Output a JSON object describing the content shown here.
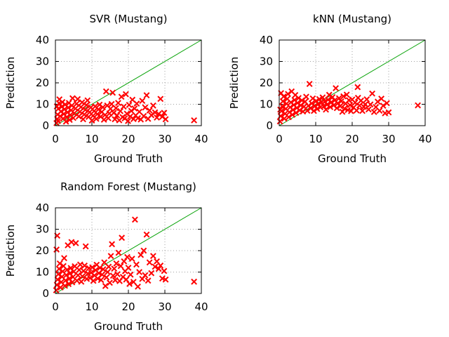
{
  "chart_data": [
    {
      "type": "scatter",
      "title": "SVR (Mustang)",
      "xlabel": "Ground Truth",
      "ylabel": "Prediction",
      "xlim": [
        0,
        40
      ],
      "ylim": [
        0,
        40
      ],
      "xticks": [
        0,
        10,
        20,
        30,
        40
      ],
      "yticks": [
        0,
        10,
        20,
        30,
        40
      ],
      "grid": true,
      "reference_line": {
        "from": [
          0,
          0
        ],
        "to": [
          40,
          40
        ],
        "color": "#00a000"
      },
      "marker_color": "#ff0000",
      "points": [
        [
          0.3,
          1.2
        ],
        [
          0.5,
          3.1
        ],
        [
          0.6,
          5.2
        ],
        [
          0.8,
          7.9
        ],
        [
          1.0,
          10.5
        ],
        [
          1.1,
          12.3
        ],
        [
          0.4,
          9.0
        ],
        [
          0.7,
          2.2
        ],
        [
          1.3,
          4.4
        ],
        [
          1.5,
          6.6
        ],
        [
          1.7,
          8.8
        ],
        [
          1.9,
          11.0
        ],
        [
          2.1,
          3.3
        ],
        [
          2.3,
          5.5
        ],
        [
          2.5,
          7.7
        ],
        [
          2.7,
          9.9
        ],
        [
          2.9,
          1.9
        ],
        [
          3.1,
          4.0
        ],
        [
          3.3,
          6.2
        ],
        [
          3.5,
          8.4
        ],
        [
          3.7,
          10.6
        ],
        [
          3.9,
          2.7
        ],
        [
          4.1,
          5.0
        ],
        [
          4.3,
          7.2
        ],
        [
          4.5,
          9.4
        ],
        [
          4.7,
          12.8
        ],
        [
          4.9,
          3.6
        ],
        [
          5.2,
          5.8
        ],
        [
          5.5,
          8.0
        ],
        [
          5.8,
          10.2
        ],
        [
          6.1,
          12.4
        ],
        [
          6.4,
          4.3
        ],
        [
          6.7,
          6.5
        ],
        [
          7.0,
          8.7
        ],
        [
          7.3,
          10.9
        ],
        [
          7.6,
          3.0
        ],
        [
          7.9,
          5.2
        ],
        [
          8.2,
          7.4
        ],
        [
          8.5,
          9.6
        ],
        [
          8.8,
          11.8
        ],
        [
          9.1,
          4.1
        ],
        [
          9.4,
          6.3
        ],
        [
          9.7,
          8.5
        ],
        [
          10.0,
          2.4
        ],
        [
          10.3,
          4.6
        ],
        [
          10.6,
          6.8
        ],
        [
          10.9,
          9.0
        ],
        [
          11.2,
          3.2
        ],
        [
          11.5,
          5.4
        ],
        [
          11.8,
          7.6
        ],
        [
          12.1,
          9.8
        ],
        [
          12.4,
          4.2
        ],
        [
          12.7,
          6.4
        ],
        [
          13.0,
          8.6
        ],
        [
          13.3,
          2.8
        ],
        [
          13.6,
          5.0
        ],
        [
          13.9,
          16.0
        ],
        [
          14.2,
          9.4
        ],
        [
          14.5,
          3.5
        ],
        [
          14.8,
          5.7
        ],
        [
          15.1,
          7.9
        ],
        [
          15.4,
          10.1
        ],
        [
          15.7,
          15.4
        ],
        [
          16.0,
          6.0
        ],
        [
          16.3,
          3.0
        ],
        [
          16.6,
          8.2
        ],
        [
          16.9,
          4.8
        ],
        [
          17.2,
          10.6
        ],
        [
          17.5,
          2.5
        ],
        [
          17.8,
          6.8
        ],
        [
          18.1,
          13.5
        ],
        [
          18.4,
          4.0
        ],
        [
          18.7,
          8.9
        ],
        [
          19.0,
          3.4
        ],
        [
          19.3,
          14.7
        ],
        [
          19.6,
          5.6
        ],
        [
          19.9,
          2.2
        ],
        [
          20.2,
          9.7
        ],
        [
          20.5,
          4.3
        ],
        [
          20.8,
          6.9
        ],
        [
          21.1,
          12.1
        ],
        [
          21.4,
          3.1
        ],
        [
          21.7,
          8.0
        ],
        [
          22.0,
          4.8
        ],
        [
          22.3,
          10.3
        ],
        [
          22.6,
          3.5
        ],
        [
          23.0,
          6.5
        ],
        [
          23.4,
          2.9
        ],
        [
          23.8,
          11.6
        ],
        [
          24.2,
          4.5
        ],
        [
          24.6,
          8.5
        ],
        [
          25.0,
          14.2
        ],
        [
          25.4,
          3.2
        ],
        [
          25.8,
          7.1
        ],
        [
          26.3,
          4.9
        ],
        [
          26.8,
          9.4
        ],
        [
          27.3,
          6.2
        ],
        [
          27.8,
          3.8
        ],
        [
          28.3,
          5.5
        ],
        [
          28.8,
          12.5
        ],
        [
          29.3,
          4.2
        ],
        [
          29.8,
          6.0
        ],
        [
          30.2,
          3.0
        ],
        [
          38.0,
          2.5
        ]
      ]
    },
    {
      "type": "scatter",
      "title": "kNN (Mustang)",
      "xlabel": "Ground Truth",
      "ylabel": "Prediction",
      "xlim": [
        0,
        40
      ],
      "ylim": [
        0,
        40
      ],
      "xticks": [
        0,
        10,
        20,
        30,
        40
      ],
      "yticks": [
        0,
        10,
        20,
        30,
        40
      ],
      "grid": true,
      "reference_line": {
        "from": [
          0,
          0
        ],
        "to": [
          40,
          40
        ],
        "color": "#00a000"
      },
      "marker_color": "#ff0000",
      "points": [
        [
          0.2,
          2.0
        ],
        [
          0.4,
          4.5
        ],
        [
          0.6,
          6.8
        ],
        [
          0.8,
          9.1
        ],
        [
          1.0,
          11.4
        ],
        [
          1.2,
          13.6
        ],
        [
          0.3,
          7.5
        ],
        [
          0.5,
          15.2
        ],
        [
          1.4,
          3.3
        ],
        [
          1.6,
          5.6
        ],
        [
          1.8,
          7.9
        ],
        [
          2.0,
          10.2
        ],
        [
          2.2,
          12.5
        ],
        [
          2.4,
          14.8
        ],
        [
          2.6,
          4.0
        ],
        [
          2.8,
          6.3
        ],
        [
          3.0,
          8.6
        ],
        [
          3.2,
          10.9
        ],
        [
          3.4,
          16.0
        ],
        [
          3.6,
          5.1
        ],
        [
          3.8,
          7.4
        ],
        [
          4.0,
          9.7
        ],
        [
          4.2,
          12.0
        ],
        [
          4.4,
          14.3
        ],
        [
          4.6,
          6.0
        ],
        [
          4.8,
          8.3
        ],
        [
          5.0,
          10.6
        ],
        [
          5.3,
          12.9
        ],
        [
          5.6,
          7.2
        ],
        [
          5.9,
          9.5
        ],
        [
          6.2,
          11.8
        ],
        [
          6.5,
          6.6
        ],
        [
          6.8,
          8.9
        ],
        [
          7.1,
          11.2
        ],
        [
          7.4,
          13.5
        ],
        [
          7.7,
          7.0
        ],
        [
          8.0,
          9.3
        ],
        [
          8.3,
          19.5
        ],
        [
          8.6,
          8.1
        ],
        [
          8.9,
          10.4
        ],
        [
          9.2,
          12.7
        ],
        [
          9.5,
          6.9
        ],
        [
          9.8,
          9.2
        ],
        [
          10.1,
          11.5
        ],
        [
          10.4,
          7.8
        ],
        [
          10.7,
          10.1
        ],
        [
          11.0,
          12.4
        ],
        [
          11.3,
          8.6
        ],
        [
          11.6,
          10.9
        ],
        [
          11.9,
          13.2
        ],
        [
          12.2,
          9.0
        ],
        [
          12.5,
          11.3
        ],
        [
          12.8,
          7.5
        ],
        [
          13.1,
          9.8
        ],
        [
          13.4,
          12.1
        ],
        [
          13.7,
          14.4
        ],
        [
          14.0,
          8.7
        ],
        [
          14.3,
          11.0
        ],
        [
          14.6,
          13.3
        ],
        [
          14.9,
          9.5
        ],
        [
          15.2,
          11.8
        ],
        [
          15.5,
          17.5
        ],
        [
          15.8,
          8.2
        ],
        [
          16.1,
          10.5
        ],
        [
          16.4,
          12.8
        ],
        [
          16.7,
          9.1
        ],
        [
          17.0,
          11.4
        ],
        [
          17.3,
          6.5
        ],
        [
          17.6,
          13.7
        ],
        [
          17.9,
          8.0
        ],
        [
          18.2,
          10.3
        ],
        [
          18.5,
          14.5
        ],
        [
          18.8,
          7.3
        ],
        [
          19.1,
          11.9
        ],
        [
          19.4,
          9.6
        ],
        [
          19.7,
          6.8
        ],
        [
          20.0,
          12.2
        ],
        [
          20.4,
          8.5
        ],
        [
          20.8,
          10.8
        ],
        [
          21.2,
          7.1
        ],
        [
          21.6,
          13.0
        ],
        [
          22.0,
          9.4
        ],
        [
          22.4,
          11.7
        ],
        [
          22.8,
          6.9
        ],
        [
          23.2,
          8.8
        ],
        [
          23.6,
          10.0
        ],
        [
          24.0,
          12.3
        ],
        [
          24.5,
          7.6
        ],
        [
          25.0,
          9.9
        ],
        [
          25.5,
          15.0
        ],
        [
          26.0,
          6.4
        ],
        [
          26.5,
          8.7
        ],
        [
          27.0,
          11.2
        ],
        [
          27.5,
          7.0
        ],
        [
          28.0,
          12.6
        ],
        [
          28.5,
          9.3
        ],
        [
          29.0,
          5.8
        ],
        [
          29.5,
          10.5
        ],
        [
          30.0,
          6.2
        ],
        [
          38.0,
          9.5
        ],
        [
          21.5,
          18.0
        ]
      ]
    },
    {
      "type": "scatter",
      "title": "Random Forest (Mustang)",
      "xlabel": "Ground Truth",
      "ylabel": "Prediction",
      "xlim": [
        0,
        40
      ],
      "ylim": [
        0,
        40
      ],
      "xticks": [
        0,
        10,
        20,
        30,
        40
      ],
      "yticks": [
        0,
        10,
        20,
        30,
        40
      ],
      "grid": true,
      "reference_line": {
        "from": [
          0,
          0
        ],
        "to": [
          40,
          40
        ],
        "color": "#00a000"
      },
      "marker_color": "#ff0000",
      "points": [
        [
          0.2,
          1.5
        ],
        [
          0.4,
          4.0
        ],
        [
          0.6,
          6.5
        ],
        [
          0.8,
          9.0
        ],
        [
          1.0,
          11.5
        ],
        [
          1.2,
          14.0
        ],
        [
          0.5,
          27.0
        ],
        [
          0.3,
          20.5
        ],
        [
          1.4,
          2.8
        ],
        [
          1.6,
          5.3
        ],
        [
          1.8,
          7.8
        ],
        [
          2.0,
          10.3
        ],
        [
          2.2,
          12.8
        ],
        [
          2.4,
          16.5
        ],
        [
          2.6,
          3.6
        ],
        [
          2.8,
          6.1
        ],
        [
          3.0,
          8.6
        ],
        [
          3.2,
          11.1
        ],
        [
          3.4,
          22.5
        ],
        [
          3.6,
          4.4
        ],
        [
          3.8,
          6.9
        ],
        [
          4.0,
          9.4
        ],
        [
          4.2,
          11.9
        ],
        [
          4.4,
          24.0
        ],
        [
          4.6,
          5.2
        ],
        [
          4.8,
          7.7
        ],
        [
          5.0,
          10.2
        ],
        [
          5.3,
          12.7
        ],
        [
          5.6,
          23.5
        ],
        [
          5.9,
          6.0
        ],
        [
          6.2,
          8.5
        ],
        [
          6.5,
          11.0
        ],
        [
          6.8,
          13.5
        ],
        [
          7.1,
          5.5
        ],
        [
          7.4,
          8.0
        ],
        [
          7.7,
          10.5
        ],
        [
          8.0,
          13.0
        ],
        [
          8.3,
          22.0
        ],
        [
          8.6,
          6.8
        ],
        [
          8.9,
          9.3
        ],
        [
          9.2,
          11.8
        ],
        [
          9.5,
          7.2
        ],
        [
          9.8,
          9.7
        ],
        [
          10.1,
          12.2
        ],
        [
          10.4,
          5.9
        ],
        [
          10.7,
          8.4
        ],
        [
          11.0,
          10.9
        ],
        [
          11.3,
          13.4
        ],
        [
          11.6,
          7.0
        ],
        [
          11.9,
          9.5
        ],
        [
          12.2,
          12.0
        ],
        [
          12.5,
          6.3
        ],
        [
          12.8,
          8.8
        ],
        [
          13.1,
          11.3
        ],
        [
          13.4,
          14.5
        ],
        [
          13.7,
          3.5
        ],
        [
          14.0,
          7.5
        ],
        [
          14.3,
          10.0
        ],
        [
          14.6,
          12.5
        ],
        [
          14.9,
          5.0
        ],
        [
          15.2,
          17.5
        ],
        [
          15.5,
          23.0
        ],
        [
          15.8,
          8.3
        ],
        [
          16.1,
          11.6
        ],
        [
          16.4,
          6.2
        ],
        [
          16.7,
          14.0
        ],
        [
          17.0,
          9.0
        ],
        [
          17.3,
          19.0
        ],
        [
          17.6,
          5.8
        ],
        [
          17.9,
          12.8
        ],
        [
          18.2,
          26.0
        ],
        [
          18.5,
          7.7
        ],
        [
          18.8,
          15.0
        ],
        [
          19.1,
          10.4
        ],
        [
          19.4,
          6.5
        ],
        [
          19.7,
          17.0
        ],
        [
          20.0,
          12.0
        ],
        [
          20.3,
          4.5
        ],
        [
          20.6,
          8.8
        ],
        [
          21.0,
          16.2
        ],
        [
          21.4,
          5.4
        ],
        [
          21.8,
          34.5
        ],
        [
          22.2,
          13.5
        ],
        [
          22.6,
          3.2
        ],
        [
          23.0,
          10.0
        ],
        [
          23.4,
          18.0
        ],
        [
          23.8,
          6.8
        ],
        [
          24.2,
          20.0
        ],
        [
          24.6,
          8.5
        ],
        [
          25.0,
          27.5
        ],
        [
          25.4,
          6.0
        ],
        [
          25.8,
          14.5
        ],
        [
          26.3,
          9.5
        ],
        [
          26.8,
          17.5
        ],
        [
          27.3,
          12.5
        ],
        [
          27.8,
          15.0
        ],
        [
          28.3,
          11.5
        ],
        [
          28.8,
          13.0
        ],
        [
          29.3,
          7.0
        ],
        [
          29.8,
          10.5
        ],
        [
          30.2,
          6.5
        ],
        [
          38.0,
          5.5
        ]
      ]
    }
  ]
}
